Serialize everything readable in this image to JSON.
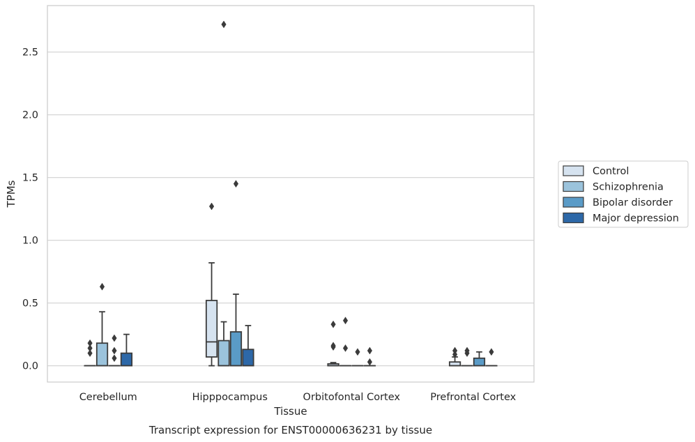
{
  "chart_data": {
    "type": "boxplot",
    "title": "Transcript expression for ENST00000636231 by tissue",
    "xlabel": "Tissue",
    "ylabel": "TPMs",
    "ylim": [
      -0.13,
      2.87
    ],
    "yticks": [
      0.0,
      0.5,
      1.0,
      1.5,
      2.0,
      2.5
    ],
    "ytick_labels": [
      "0.0",
      "0.5",
      "1.0",
      "1.5",
      "2.0",
      "2.5"
    ],
    "grid": "horizontal",
    "legend_position": "right",
    "categories": [
      "Cerebellum",
      "Hipppocampus",
      "Orbitofontal Cortex",
      "Prefrontal Cortex"
    ],
    "series": [
      {
        "name": "Control",
        "color": "#d6e3f0",
        "boxes": [
          {
            "q1": 0.0,
            "median": 0.0,
            "q3": 0.0,
            "whislo": 0.0,
            "whishi": 0.0,
            "fliers": [
              0.1,
              0.14,
              0.18
            ]
          },
          {
            "q1": 0.07,
            "median": 0.19,
            "q3": 0.52,
            "whislo": 0.0,
            "whishi": 0.82,
            "fliers": [
              1.27
            ]
          },
          {
            "q1": 0.0,
            "median": 0.0,
            "q3": 0.015,
            "whislo": 0.0,
            "whishi": 0.025,
            "fliers": [
              0.15,
              0.16,
              0.33
            ]
          },
          {
            "q1": 0.0,
            "median": 0.0,
            "q3": 0.03,
            "whislo": 0.0,
            "whishi": 0.07,
            "fliers": [
              0.09,
              0.12
            ]
          }
        ]
      },
      {
        "name": "Schizophrenia",
        "color": "#9bc3dc",
        "boxes": [
          {
            "q1": 0.0,
            "median": 0.0,
            "q3": 0.18,
            "whislo": 0.0,
            "whishi": 0.43,
            "fliers": [
              0.63
            ]
          },
          {
            "q1": 0.0,
            "median": 0.0,
            "q3": 0.2,
            "whislo": 0.0,
            "whishi": 0.35,
            "fliers": [
              2.72
            ]
          },
          {
            "q1": 0.0,
            "median": 0.0,
            "q3": 0.0,
            "whislo": 0.0,
            "whishi": 0.0,
            "fliers": [
              0.14,
              0.36
            ]
          },
          {
            "q1": 0.0,
            "median": 0.0,
            "q3": 0.0,
            "whislo": 0.0,
            "whishi": 0.0,
            "fliers": [
              0.1,
              0.12
            ]
          }
        ]
      },
      {
        "name": "Bipolar disorder",
        "color": "#5a9bc7",
        "boxes": [
          {
            "q1": 0.0,
            "median": 0.0,
            "q3": 0.0,
            "whislo": 0.0,
            "whishi": 0.0,
            "fliers": [
              0.06,
              0.12,
              0.22
            ]
          },
          {
            "q1": 0.0,
            "median": 0.0,
            "q3": 0.27,
            "whislo": 0.0,
            "whishi": 0.57,
            "fliers": [
              1.45
            ]
          },
          {
            "q1": 0.0,
            "median": 0.0,
            "q3": 0.0,
            "whislo": 0.0,
            "whishi": 0.0,
            "fliers": [
              0.11
            ]
          },
          {
            "q1": 0.0,
            "median": 0.0,
            "q3": 0.06,
            "whislo": 0.0,
            "whishi": 0.11,
            "fliers": []
          }
        ]
      },
      {
        "name": "Major depression",
        "color": "#2d68a8",
        "boxes": [
          {
            "q1": 0.0,
            "median": 0.0,
            "q3": 0.1,
            "whislo": 0.0,
            "whishi": 0.25,
            "fliers": []
          },
          {
            "q1": 0.0,
            "median": 0.0,
            "q3": 0.13,
            "whislo": 0.0,
            "whishi": 0.32,
            "fliers": []
          },
          {
            "q1": 0.0,
            "median": 0.0,
            "q3": 0.0,
            "whislo": 0.0,
            "whishi": 0.0,
            "fliers": [
              0.03,
              0.12
            ]
          },
          {
            "q1": 0.0,
            "median": 0.0,
            "q3": 0.0,
            "whislo": 0.0,
            "whishi": 0.0,
            "fliers": [
              0.11
            ]
          }
        ]
      }
    ]
  }
}
